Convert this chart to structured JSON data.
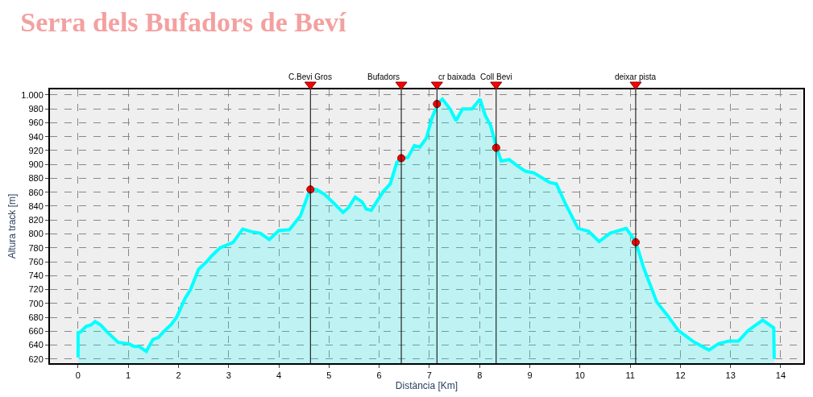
{
  "chart_data": {
    "type": "area",
    "title": "Serra dels Bufadors de Beví",
    "xlabel": "Distància [Km]",
    "ylabel": "Altura track [m]",
    "xlim": [
      -0.56,
      14.45
    ],
    "xticks": [
      0,
      1,
      2,
      3,
      4,
      5,
      6,
      7,
      8,
      9,
      10,
      11,
      12,
      13,
      14
    ],
    "ylim": [
      614,
      1008
    ],
    "yticks": [
      620,
      640,
      660,
      680,
      700,
      720,
      740,
      760,
      780,
      800,
      820,
      840,
      860,
      880,
      900,
      920,
      940,
      960,
      980,
      {
        "value": 1000,
        "label": "1.000"
      }
    ],
    "grid": true,
    "series": [
      {
        "color": "#00ffff",
        "marker": "none",
        "x": [
          0,
          0,
          0.05,
          0.16,
          0.26,
          0.34,
          0.45,
          0.58,
          0.8,
          1.01,
          1.12,
          1.22,
          1.36,
          1.49,
          1.6,
          1.7,
          1.86,
          1.97,
          2.13,
          2.24,
          2.4,
          2.56,
          2.67,
          2.83,
          2.96,
          3.09,
          3.28,
          3.47,
          3.63,
          3.81,
          4.0,
          4.21,
          4.43,
          4.62,
          4.75,
          4.91,
          5.07,
          5.28,
          5.39,
          5.52,
          5.66,
          5.74,
          5.84,
          6.08,
          6.22,
          6.35,
          6.45,
          6.57,
          6.7,
          6.81,
          6.94,
          7.05,
          7.18,
          7.26,
          7.42,
          7.53,
          7.66,
          7.85,
          8.01,
          8.11,
          8.22,
          8.33,
          8.43,
          8.59,
          8.75,
          8.92,
          9.08,
          9.4,
          9.53,
          9.72,
          9.96,
          10.17,
          10.38,
          10.6,
          10.92,
          11.11,
          11.27,
          11.53,
          11.77,
          11.96,
          12.28,
          12.57,
          12.76,
          12.97,
          13.16,
          13.35,
          13.64,
          13.86,
          13.87
        ],
        "values": [
          622,
          658,
          659,
          667,
          669,
          674,
          669,
          659,
          644,
          642,
          638,
          638,
          631,
          648,
          651,
          659,
          670,
          681,
          707,
          720,
          749,
          760,
          769,
          780,
          784,
          788,
          807,
          803,
          801,
          792,
          805,
          806,
          826,
          864,
          864,
          857,
          846,
          831,
          838,
          853,
          846,
          836,
          834,
          861,
          872,
          903,
          909,
          910,
          927,
          925,
          938,
          967,
          989,
          994,
          979,
          963,
          980,
          980,
          994,
          971,
          956,
          926,
          905,
          907,
          898,
          890,
          888,
          874,
          872,
          842,
          808,
          804,
          789,
          801,
          808,
          789,
          751,
          702,
          680,
          661,
          644,
          633,
          642,
          646,
          646,
          661,
          676,
          665,
          620
        ]
      },
      {
        "type": "scatter",
        "color": "#ff0000",
        "marker": "circle",
        "x": [
          4.63,
          6.44,
          7.15,
          8.33,
          11.11
        ],
        "values": [
          864,
          909,
          987,
          924,
          788
        ]
      }
    ],
    "ref_lines": [
      {
        "axis": "x",
        "value": 4.63,
        "label": "C.Bevi Gros",
        "color": "#000000"
      },
      {
        "axis": "x",
        "value": 6.44,
        "label": "Bufadors",
        "color": "#000000"
      },
      {
        "axis": "x",
        "value": 7.15,
        "label": "cr baixada",
        "color": "#000000"
      },
      {
        "axis": "x",
        "value": 8.33,
        "label": "Coll Bevi",
        "color": "#000000"
      },
      {
        "axis": "x",
        "value": 11.11,
        "label": "deixar pista",
        "color": "#000000"
      }
    ]
  }
}
